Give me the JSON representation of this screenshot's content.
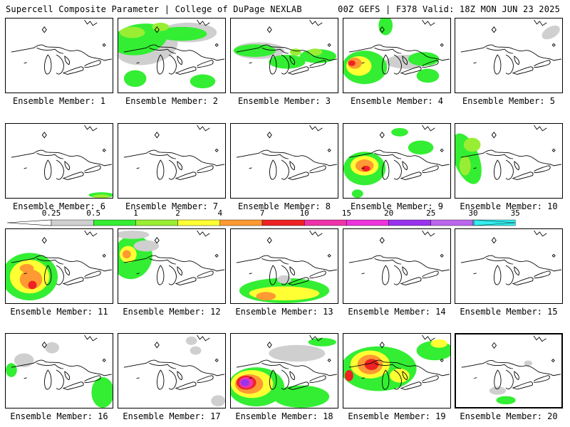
{
  "header": {
    "left": "Supercell Composite Parameter | College of DuPage NEXLAB",
    "right": "00Z GEFS | F378 Valid: 18Z MON JUN 23 2025"
  },
  "colors": {
    "lightgray": "#cfcfcf",
    "green": "#33ee33",
    "lightgreen": "#99ee33",
    "yellow": "#ffff33",
    "orange": "#ff9933",
    "red": "#ee2222",
    "pink": "#ee33aa",
    "magenta": "#ee33dd",
    "purple": "#9933ee",
    "lavender": "#bb66ee",
    "cyan": "#33eeee"
  },
  "colorbar": {
    "labels": [
      "0.25",
      "0.5",
      "1",
      "2",
      "4",
      "7",
      "10",
      "15",
      "20",
      "25",
      "30",
      "35"
    ],
    "segment_colors": [
      "#ffffff",
      "#cfcfcf",
      "#33ee33",
      "#99ee33",
      "#ffff33",
      "#ff9933",
      "#ee2222",
      "#ee33aa",
      "#ee33dd",
      "#9933ee",
      "#bb66ee",
      "#33eeee"
    ]
  },
  "panels": [
    {
      "label": "Ensemble Member: 1",
      "selected": false
    },
    {
      "label": "Ensemble Member: 2",
      "selected": false
    },
    {
      "label": "Ensemble Member: 3",
      "selected": false
    },
    {
      "label": "Ensemble Member: 4",
      "selected": false
    },
    {
      "label": "Ensemble Member: 5",
      "selected": false
    },
    {
      "label": "Ensemble Member: 6",
      "selected": false
    },
    {
      "label": "Ensemble Member: 7",
      "selected": false
    },
    {
      "label": "Ensemble Member: 8",
      "selected": false
    },
    {
      "label": "Ensemble Member: 9",
      "selected": false
    },
    {
      "label": "Ensemble Member: 10",
      "selected": false
    },
    {
      "label": "Ensemble Member: 11",
      "selected": false
    },
    {
      "label": "Ensemble Member: 12",
      "selected": false
    },
    {
      "label": "Ensemble Member: 13",
      "selected": false
    },
    {
      "label": "Ensemble Member: 14",
      "selected": false
    },
    {
      "label": "Ensemble Member: 15",
      "selected": false
    },
    {
      "label": "Ensemble Member: 16",
      "selected": false
    },
    {
      "label": "Ensemble Member: 17",
      "selected": false
    },
    {
      "label": "Ensemble Member: 18",
      "selected": false
    },
    {
      "label": "Ensemble Member: 19",
      "selected": false
    },
    {
      "label": "Ensemble Member: 20",
      "selected": true
    }
  ]
}
